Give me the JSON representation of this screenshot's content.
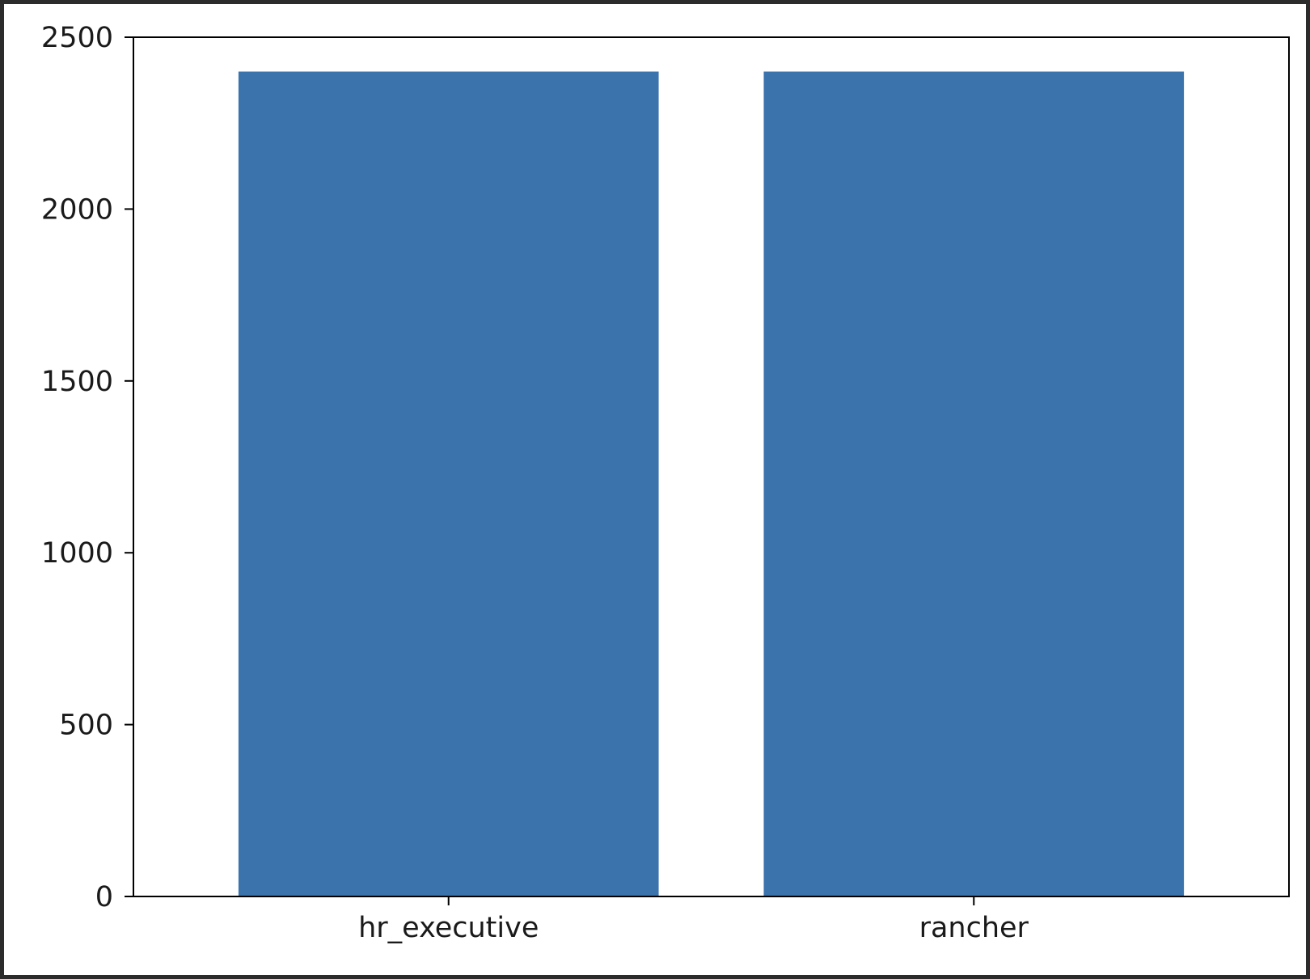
{
  "chart_data": {
    "type": "bar",
    "categories": [
      "hr_executive",
      "rancher"
    ],
    "values": [
      2400,
      2400
    ],
    "ylim": [
      0,
      2500
    ],
    "yticks": [
      0,
      500,
      1000,
      1500,
      2000,
      2500
    ],
    "ytick_labels": [
      "0",
      "500",
      "1000",
      "1500",
      "2000",
      "2500"
    ],
    "bar_color": "#3b73ad",
    "grid": false,
    "title": "",
    "xlabel": "",
    "ylabel": ""
  }
}
